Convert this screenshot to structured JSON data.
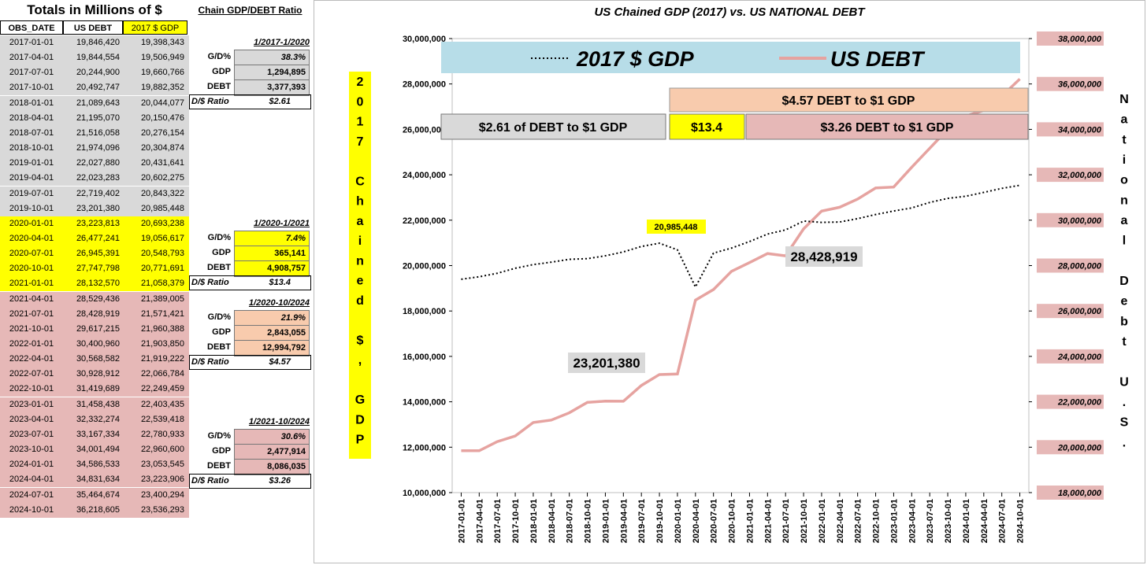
{
  "table": {
    "title": "Totals in Millions of $",
    "headers": [
      "OBS_DATE",
      "US DEBT",
      "2017 $ GDP"
    ],
    "rows": [
      [
        "2017-01-01",
        "19,846,420",
        "19,398,343"
      ],
      [
        "2017-04-01",
        "19,844,554",
        "19,506,949"
      ],
      [
        "2017-07-01",
        "20,244,900",
        "19,660,766"
      ],
      [
        "2017-10-01",
        "20,492,747",
        "19,882,352"
      ],
      [
        "2018-01-01",
        "21,089,643",
        "20,044,077"
      ],
      [
        "2018-04-01",
        "21,195,070",
        "20,150,476"
      ],
      [
        "2018-07-01",
        "21,516,058",
        "20,276,154"
      ],
      [
        "2018-10-01",
        "21,974,096",
        "20,304,874"
      ],
      [
        "2019-01-01",
        "22,027,880",
        "20,431,641"
      ],
      [
        "2019-04-01",
        "22,023,283",
        "20,602,275"
      ],
      [
        "2019-07-01",
        "22,719,402",
        "20,843,322"
      ],
      [
        "2019-10-01",
        "23,201,380",
        "20,985,448"
      ],
      [
        "2020-01-01",
        "23,223,813",
        "20,693,238"
      ],
      [
        "2020-04-01",
        "26,477,241",
        "19,056,617"
      ],
      [
        "2020-07-01",
        "26,945,391",
        "20,548,793"
      ],
      [
        "2020-10-01",
        "27,747,798",
        "20,771,691"
      ],
      [
        "2021-01-01",
        "28,132,570",
        "21,058,379"
      ],
      [
        "2021-04-01",
        "28,529,436",
        "21,389,005"
      ],
      [
        "2021-07-01",
        "28,428,919",
        "21,571,421"
      ],
      [
        "2021-10-01",
        "29,617,215",
        "21,960,388"
      ],
      [
        "2022-01-01",
        "30,400,960",
        "21,903,850"
      ],
      [
        "2022-04-01",
        "30,568,582",
        "21,919,222"
      ],
      [
        "2022-07-01",
        "30,928,912",
        "22,066,784"
      ],
      [
        "2022-10-01",
        "31,419,689",
        "22,249,459"
      ],
      [
        "2023-01-01",
        "31,458,438",
        "22,403,435"
      ],
      [
        "2023-04-01",
        "32,332,274",
        "22,539,418"
      ],
      [
        "2023-07-01",
        "33,167,334",
        "22,780,933"
      ],
      [
        "2023-10-01",
        "34,001,494",
        "22,960,600"
      ],
      [
        "2024-01-01",
        "34,586,533",
        "23,053,545"
      ],
      [
        "2024-04-01",
        "34,831,634",
        "23,223,906"
      ],
      [
        "2024-07-01",
        "35,464,674",
        "23,400,294"
      ],
      [
        "2024-10-01",
        "36,218,605",
        "23,536,293"
      ]
    ],
    "row_colors": [
      "#d9d9d9",
      "#d9d9d9",
      "#d9d9d9",
      "#d9d9d9",
      "#d9d9d9",
      "#d9d9d9",
      "#d9d9d9",
      "#d9d9d9",
      "#d9d9d9",
      "#d9d9d9",
      "#d9d9d9",
      "#d9d9d9",
      "#ffff00",
      "#ffff00",
      "#ffff00",
      "#ffff00",
      "#ffff00",
      "#e6b8b7",
      "#e6b8b7",
      "#e6b8b7",
      "#e6b8b7",
      "#e6b8b7",
      "#e6b8b7",
      "#e6b8b7",
      "#e6b8b7",
      "#e6b8b7",
      "#e6b8b7",
      "#e6b8b7",
      "#e6b8b7",
      "#e6b8b7",
      "#e6b8b7",
      "#e6b8b7"
    ]
  },
  "ratio_panel": {
    "title": "Chain GDP/DEBT Ratio",
    "blocks": [
      {
        "range": "1/2017-1/2020",
        "gd": "38.3%",
        "gdp": "1,294,895",
        "debt": "3,377,393",
        "ratio": "$2.61",
        "color": "#d9d9d9"
      },
      {
        "range": "1/2020-1/2021",
        "gd": "7.4%",
        "gdp": "365,141",
        "debt": "4,908,757",
        "ratio": "$13.4",
        "color": "#ffff00"
      },
      {
        "range": "1/2020-10/2024",
        "gd": "21.9%",
        "gdp": "2,843,055",
        "debt": "12,994,792",
        "ratio": "$4.57",
        "color": "#f8cbad"
      },
      {
        "range": "1/2021-10/2024",
        "gd": "30.6%",
        "gdp": "2,477,914",
        "debt": "8,086,035",
        "ratio": "$3.26",
        "color": "#e6b8b7"
      }
    ],
    "labels": {
      "gd": "G/D%",
      "gdp": "GDP",
      "debt": "DEBT",
      "ratio": "D/$ Ratio"
    }
  },
  "chart": {
    "left_axis_label": "2017 Chained $, GDP",
    "right_axis_label": "National Debt U.S.",
    "legend": {
      "gdp": "2017 $ GDP",
      "debt": "US DEBT"
    },
    "boxes": {
      "b1": "$2.61 of DEBT to $1 GDP",
      "b2": "$13.4",
      "b3": "$3.26 DEBT to $1 GDP",
      "b4": "$4.57 DEBT to $1 GDP"
    },
    "callouts": {
      "c1": "20,985,448",
      "c2": "23,201,380",
      "c3": "28,428,919"
    },
    "colors": {
      "gdp": "#000000",
      "debt": "#e6a3a0",
      "legend_bg": "#b7dde8",
      "right_tick_bg": "#e6b8b7",
      "yellow": "#ffff00",
      "grey": "#d9d9d9",
      "peach": "#f8cbad",
      "pink": "#e6b8b7"
    }
  },
  "chart_data": {
    "type": "line",
    "title": "US Chained GDP (2017) vs. US NATIONAL DEBT",
    "x": [
      "2017-01-01",
      "2017-04-01",
      "2017-07-01",
      "2017-10-01",
      "2018-01-01",
      "2018-04-01",
      "2018-07-01",
      "2018-10-01",
      "2019-01-01",
      "2019-04-01",
      "2019-07-01",
      "2019-10-01",
      "2020-01-01",
      "2020-04-01",
      "2020-07-01",
      "2020-10-01",
      "2021-01-01",
      "2021-04-01",
      "2021-07-01",
      "2021-10-01",
      "2022-01-01",
      "2022-04-01",
      "2022-07-01",
      "2022-10-01",
      "2023-01-01",
      "2023-04-01",
      "2023-07-01",
      "2023-10-01",
      "2024-01-01",
      "2024-04-01",
      "2024-07-01",
      "2024-10-01"
    ],
    "series": [
      {
        "name": "2017 $ GDP",
        "axis": "left",
        "values": [
          19398343,
          19506949,
          19660766,
          19882352,
          20044077,
          20150476,
          20276154,
          20304874,
          20431641,
          20602275,
          20843322,
          20985448,
          20693238,
          19056617,
          20548793,
          20771691,
          21058379,
          21389005,
          21571421,
          21960388,
          21903850,
          21919222,
          22066784,
          22249459,
          22403435,
          22539418,
          22780933,
          22960600,
          23053545,
          23223906,
          23400294,
          23536293
        ]
      },
      {
        "name": "US DEBT",
        "axis": "right",
        "values": [
          19846420,
          19844554,
          20244900,
          20492747,
          21089643,
          21195070,
          21516058,
          21974096,
          22027880,
          22023283,
          22719402,
          23201380,
          23223813,
          26477241,
          26945391,
          27747798,
          28132570,
          28529436,
          28428919,
          29617215,
          30400960,
          30568582,
          30928912,
          31419689,
          31458438,
          32332274,
          33167334,
          34001494,
          34586533,
          34831634,
          35464674,
          36218605
        ]
      }
    ],
    "ylim_left": [
      10000000,
      30000000
    ],
    "ylim_right": [
      18000000,
      38000000
    ],
    "yticks_left": [
      "10,000,000",
      "12,000,000",
      "14,000,000",
      "16,000,000",
      "18,000,000",
      "20,000,000",
      "22,000,000",
      "24,000,000",
      "26,000,000",
      "28,000,000",
      "30,000,000"
    ],
    "yticks_right": [
      "18,000,000",
      "20,000,000",
      "22,000,000",
      "24,000,000",
      "26,000,000",
      "28,000,000",
      "30,000,000",
      "32,000,000",
      "34,000,000",
      "36,000,000",
      "38,000,000"
    ],
    "grid": false,
    "legend_position": "top"
  }
}
